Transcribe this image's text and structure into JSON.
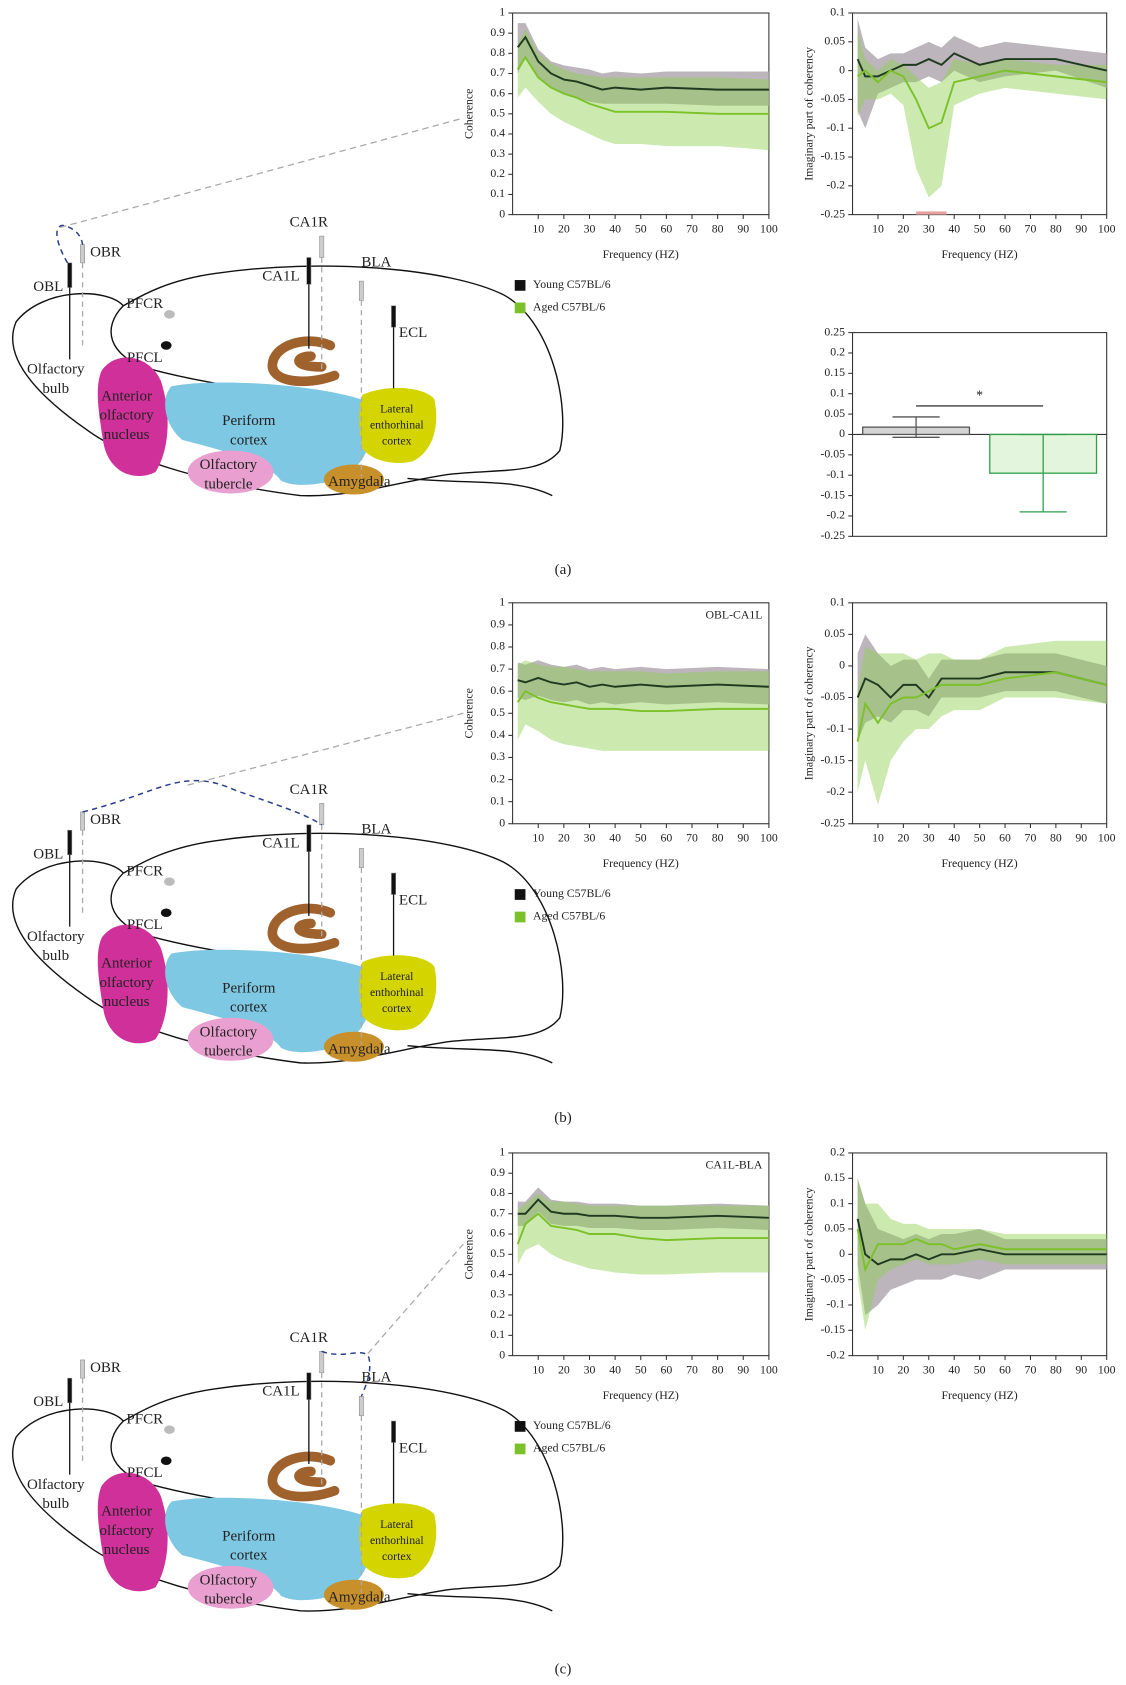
{
  "chart_data": [
    {
      "type": "line",
      "y_label": "Coherence",
      "x_label": "Frequency (HZ)",
      "legend": "below",
      "x": [
        2,
        5,
        10,
        15,
        20,
        25,
        30,
        35,
        40,
        50,
        60,
        80,
        100
      ],
      "xlim": [
        0,
        100
      ],
      "xticks": [
        10,
        20,
        30,
        40,
        50,
        60,
        70,
        80,
        90,
        100
      ],
      "ylim": [
        0,
        1
      ],
      "yticks": [
        0,
        0.1,
        0.2,
        0.3,
        0.4,
        0.5,
        0.6,
        0.7,
        0.8,
        0.9,
        1
      ],
      "series": [
        {
          "name": "Young C57BL/6",
          "color": "#1f3a1f",
          "band_color": "#b5adb5",
          "values": [
            0.83,
            0.88,
            0.76,
            0.7,
            0.67,
            0.66,
            0.64,
            0.62,
            0.63,
            0.62,
            0.63,
            0.62,
            0.62
          ],
          "lower": [
            0.7,
            0.78,
            0.68,
            0.63,
            0.6,
            0.58,
            0.56,
            0.55,
            0.55,
            0.55,
            0.55,
            0.54,
            0.54
          ],
          "upper": [
            0.95,
            0.95,
            0.82,
            0.76,
            0.74,
            0.73,
            0.72,
            0.7,
            0.71,
            0.7,
            0.71,
            0.71,
            0.71
          ]
        },
        {
          "name": "Aged C57BL/6",
          "color": "#7cc12a",
          "band_color": "#8fd14f",
          "values": [
            0.72,
            0.78,
            0.68,
            0.63,
            0.6,
            0.58,
            0.55,
            0.53,
            0.51,
            0.51,
            0.51,
            0.5,
            0.5
          ],
          "lower": [
            0.58,
            0.63,
            0.56,
            0.5,
            0.46,
            0.43,
            0.4,
            0.37,
            0.35,
            0.35,
            0.34,
            0.34,
            0.32
          ],
          "upper": [
            0.85,
            0.92,
            0.8,
            0.75,
            0.72,
            0.7,
            0.69,
            0.68,
            0.68,
            0.68,
            0.68,
            0.68,
            0.67
          ]
        }
      ]
    },
    {
      "type": "line",
      "y_label": "Imaginary part of coherency",
      "x_label": "Frequency (HZ)",
      "x": [
        2,
        5,
        10,
        15,
        20,
        25,
        30,
        35,
        40,
        50,
        60,
        80,
        100
      ],
      "xlim": [
        0,
        100
      ],
      "xticks": [
        10,
        20,
        30,
        40,
        50,
        60,
        70,
        80,
        90,
        100
      ],
      "ylim": [
        -0.25,
        0.1
      ],
      "yticks": [
        -0.25,
        -0.2,
        -0.15,
        -0.1,
        -0.05,
        0,
        0.05,
        0.1
      ],
      "significance_band": {
        "x": [
          25,
          37
        ],
        "color": "#e8a0a0"
      },
      "series": [
        {
          "name": "Young C57BL/6",
          "color": "#1f3a1f",
          "band_color": "#b5adb5",
          "values": [
            0.02,
            -0.01,
            -0.01,
            0,
            0.01,
            0.01,
            0.02,
            0.01,
            0.03,
            0.01,
            0.02,
            0.02,
            0
          ],
          "lower": [
            -0.07,
            -0.1,
            -0.04,
            -0.03,
            -0.02,
            -0.02,
            -0.01,
            -0.02,
            0,
            -0.02,
            -0.01,
            0,
            -0.03
          ],
          "upper": [
            0.09,
            0.04,
            0.02,
            0.03,
            0.03,
            0.04,
            0.05,
            0.04,
            0.06,
            0.04,
            0.05,
            0.04,
            0.03
          ]
        },
        {
          "name": "Aged C57BL/6",
          "color": "#7cc12a",
          "band_color": "#8fd14f",
          "values": [
            -0.01,
            0,
            -0.02,
            0,
            -0.01,
            -0.05,
            -0.1,
            -0.09,
            -0.02,
            -0.01,
            0,
            -0.01,
            -0.02
          ],
          "lower": [
            -0.08,
            -0.05,
            -0.05,
            -0.04,
            -0.06,
            -0.17,
            -0.22,
            -0.2,
            -0.06,
            -0.04,
            -0.03,
            -0.04,
            -0.05
          ],
          "upper": [
            0.07,
            0.02,
            0,
            0.02,
            0.01,
            -0.01,
            -0.03,
            -0.02,
            0.02,
            0.01,
            0.02,
            0.01,
            0.01
          ]
        }
      ]
    },
    {
      "type": "bar",
      "categories": [
        null,
        null
      ],
      "values": [
        0.018,
        -0.095
      ],
      "errors": [
        0.025,
        0.095
      ],
      "colors": [
        "#d4d4d4",
        "#e3f5dc"
      ],
      "edge_colors": [
        "#555555",
        "#2e9e4a"
      ],
      "ylim": [
        -0.25,
        0.25
      ],
      "yticks": [
        -0.25,
        -0.2,
        -0.15,
        -0.1,
        -0.05,
        0,
        0.05,
        0.1,
        0.15,
        0.2,
        0.25
      ],
      "significance": {
        "y": 0.07,
        "label": "*"
      }
    },
    {
      "type": "line",
      "y_label": "Coherence",
      "x_label": "Frequency (HZ)",
      "annotation": "OBL-CA1L",
      "legend": "below",
      "x": [
        2,
        5,
        10,
        15,
        20,
        25,
        30,
        35,
        40,
        50,
        60,
        80,
        100
      ],
      "xlim": [
        0,
        100
      ],
      "xticks": [
        10,
        20,
        30,
        40,
        50,
        60,
        70,
        80,
        90,
        100
      ],
      "ylim": [
        0,
        1
      ],
      "yticks": [
        0,
        0.1,
        0.2,
        0.3,
        0.4,
        0.5,
        0.6,
        0.7,
        0.8,
        0.9,
        1
      ],
      "series": [
        {
          "name": "Young C57BL/6",
          "color": "#1f3a1f",
          "band_color": "#b5adb5",
          "values": [
            0.65,
            0.64,
            0.66,
            0.64,
            0.63,
            0.64,
            0.62,
            0.63,
            0.62,
            0.63,
            0.62,
            0.63,
            0.62
          ],
          "lower": [
            0.57,
            0.56,
            0.58,
            0.56,
            0.55,
            0.56,
            0.54,
            0.55,
            0.54,
            0.55,
            0.54,
            0.55,
            0.54
          ],
          "upper": [
            0.73,
            0.72,
            0.74,
            0.72,
            0.71,
            0.72,
            0.7,
            0.71,
            0.7,
            0.71,
            0.7,
            0.71,
            0.7
          ]
        },
        {
          "name": "Aged C57BL/6",
          "color": "#7cc12a",
          "band_color": "#8fd14f",
          "values": [
            0.55,
            0.6,
            0.57,
            0.55,
            0.54,
            0.53,
            0.52,
            0.52,
            0.52,
            0.51,
            0.51,
            0.52,
            0.52
          ],
          "lower": [
            0.38,
            0.45,
            0.42,
            0.38,
            0.36,
            0.35,
            0.34,
            0.33,
            0.33,
            0.33,
            0.33,
            0.33,
            0.33
          ],
          "upper": [
            0.72,
            0.74,
            0.72,
            0.71,
            0.71,
            0.7,
            0.69,
            0.69,
            0.69,
            0.69,
            0.68,
            0.69,
            0.69
          ]
        }
      ]
    },
    {
      "type": "line",
      "y_label": "Imaginary part of coherency",
      "x_label": "Frequency (HZ)",
      "x": [
        2,
        5,
        10,
        15,
        20,
        25,
        30,
        35,
        40,
        50,
        60,
        80,
        100
      ],
      "xlim": [
        0,
        100
      ],
      "xticks": [
        10,
        20,
        30,
        40,
        50,
        60,
        70,
        80,
        90,
        100
      ],
      "ylim": [
        -0.25,
        0.1
      ],
      "yticks": [
        -0.25,
        -0.2,
        -0.15,
        -0.1,
        -0.05,
        0,
        0.05,
        0.1
      ],
      "series": [
        {
          "name": "Young C57BL/6",
          "color": "#1f3a1f",
          "band_color": "#b5adb5",
          "values": [
            -0.05,
            -0.02,
            -0.03,
            -0.05,
            -0.03,
            -0.03,
            -0.05,
            -0.02,
            -0.02,
            -0.02,
            -0.01,
            -0.01,
            -0.03
          ],
          "lower": [
            -0.12,
            -0.09,
            -0.08,
            -0.09,
            -0.07,
            -0.07,
            -0.08,
            -0.05,
            -0.05,
            -0.05,
            -0.04,
            -0.04,
            -0.06
          ],
          "upper": [
            0.02,
            0.05,
            0.02,
            0,
            0.01,
            0.01,
            -0.02,
            0.01,
            0.01,
            0.01,
            0.02,
            0.02,
            0
          ]
        },
        {
          "name": "Aged C57BL/6",
          "color": "#7cc12a",
          "band_color": "#8fd14f",
          "values": [
            -0.12,
            -0.06,
            -0.09,
            -0.06,
            -0.05,
            -0.05,
            -0.04,
            -0.03,
            -0.03,
            -0.03,
            -0.02,
            -0.01,
            -0.03
          ],
          "lower": [
            -0.2,
            -0.15,
            -0.22,
            -0.15,
            -0.12,
            -0.1,
            -0.1,
            -0.08,
            -0.07,
            -0.07,
            -0.05,
            -0.05,
            -0.06
          ],
          "upper": [
            -0.04,
            0.03,
            0.02,
            0.02,
            0.02,
            0.01,
            0.02,
            0.02,
            0.01,
            0.01,
            0.03,
            0.04,
            0.04
          ]
        }
      ]
    },
    {
      "type": "line",
      "y_label": "Coherence",
      "x_label": "Frequency (HZ)",
      "annotation": "CA1L-BLA",
      "legend": "below",
      "x": [
        2,
        5,
        10,
        15,
        20,
        25,
        30,
        35,
        40,
        50,
        60,
        80,
        100
      ],
      "xlim": [
        0,
        100
      ],
      "xticks": [
        10,
        20,
        30,
        40,
        50,
        60,
        70,
        80,
        90,
        100
      ],
      "ylim": [
        0,
        1
      ],
      "yticks": [
        0,
        0.1,
        0.2,
        0.3,
        0.4,
        0.5,
        0.6,
        0.7,
        0.8,
        0.9,
        1
      ],
      "series": [
        {
          "name": "Young C57BL/6",
          "color": "#1f3a1f",
          "band_color": "#b5adb5",
          "values": [
            0.7,
            0.7,
            0.77,
            0.71,
            0.7,
            0.7,
            0.69,
            0.69,
            0.69,
            0.68,
            0.68,
            0.69,
            0.68
          ],
          "lower": [
            0.64,
            0.64,
            0.71,
            0.65,
            0.64,
            0.64,
            0.63,
            0.63,
            0.63,
            0.62,
            0.62,
            0.63,
            0.62
          ],
          "upper": [
            0.76,
            0.76,
            0.83,
            0.77,
            0.76,
            0.76,
            0.75,
            0.75,
            0.75,
            0.74,
            0.74,
            0.75,
            0.74
          ]
        },
        {
          "name": "Aged C57BL/6",
          "color": "#7cc12a",
          "band_color": "#8fd14f",
          "values": [
            0.55,
            0.65,
            0.7,
            0.64,
            0.63,
            0.62,
            0.6,
            0.6,
            0.6,
            0.58,
            0.57,
            0.58,
            0.58
          ],
          "lower": [
            0.45,
            0.52,
            0.55,
            0.5,
            0.47,
            0.45,
            0.43,
            0.42,
            0.41,
            0.4,
            0.4,
            0.41,
            0.41
          ],
          "upper": [
            0.72,
            0.75,
            0.8,
            0.76,
            0.76,
            0.75,
            0.74,
            0.74,
            0.74,
            0.74,
            0.74,
            0.74,
            0.74
          ]
        }
      ]
    },
    {
      "type": "line",
      "y_label": "Imaginary part of coherency",
      "x_label": "Frequency (HZ)",
      "x": [
        2,
        5,
        10,
        15,
        20,
        25,
        30,
        35,
        40,
        50,
        60,
        80,
        100
      ],
      "xlim": [
        0,
        100
      ],
      "xticks": [
        10,
        20,
        30,
        40,
        50,
        60,
        70,
        80,
        90,
        100
      ],
      "ylim": [
        -0.2,
        0.2
      ],
      "yticks": [
        -0.2,
        -0.15,
        -0.1,
        -0.05,
        0,
        0.05,
        0.1,
        0.15,
        0.2
      ],
      "series": [
        {
          "name": "Young C57BL/6",
          "color": "#1f3a1f",
          "band_color": "#b5adb5",
          "values": [
            0.07,
            0,
            -0.02,
            -0.01,
            -0.01,
            0,
            -0.01,
            0,
            0,
            0.01,
            0,
            0,
            0
          ],
          "lower": [
            -0.02,
            -0.12,
            -0.1,
            -0.07,
            -0.06,
            -0.05,
            -0.05,
            -0.05,
            -0.04,
            -0.05,
            -0.03,
            -0.03,
            -0.03
          ],
          "upper": [
            0.15,
            0.1,
            0.05,
            0.04,
            0.03,
            0.04,
            0.03,
            0.04,
            0.04,
            0.05,
            0.03,
            0.03,
            0.03
          ]
        },
        {
          "name": "Aged C57BL/6",
          "color": "#7cc12a",
          "band_color": "#8fd14f",
          "values": [
            0.05,
            -0.03,
            0.02,
            0.02,
            0.02,
            0.03,
            0.02,
            0.02,
            0.01,
            0.02,
            0.01,
            0.01,
            0.01
          ],
          "lower": [
            -0.05,
            -0.15,
            -0.05,
            -0.03,
            -0.02,
            -0.01,
            -0.02,
            -0.02,
            -0.02,
            -0.01,
            -0.02,
            -0.02,
            -0.02
          ],
          "upper": [
            0.15,
            0.1,
            0.1,
            0.07,
            0.06,
            0.06,
            0.05,
            0.05,
            0.05,
            0.05,
            0.04,
            0.04,
            0.04
          ]
        }
      ]
    }
  ],
  "diagram": {
    "obl": "OBL",
    "obr": "OBR",
    "pfcr": "PFCR",
    "pfcl": "PFCL",
    "ca1r": "CA1R",
    "ca1l": "CA1L",
    "bla": "BLA",
    "ecl": "ECL",
    "olfactory_bulb": [
      "Olfactory",
      "bulb"
    ],
    "anterior_olfactory_nucleus": [
      "Anterior",
      "olfactory",
      "nucleus"
    ],
    "periform_cortex": [
      "Periform",
      "cortex"
    ],
    "olfactory_tubercle": [
      "Olfactory",
      "tubercle"
    ],
    "amygdala": "Amygdala",
    "lateral_enthorhinal_cortex": [
      "Lateral",
      "enthorhinal",
      "cortex"
    ]
  },
  "panel_labels": [
    "(a)",
    "(b)",
    "(c)"
  ]
}
